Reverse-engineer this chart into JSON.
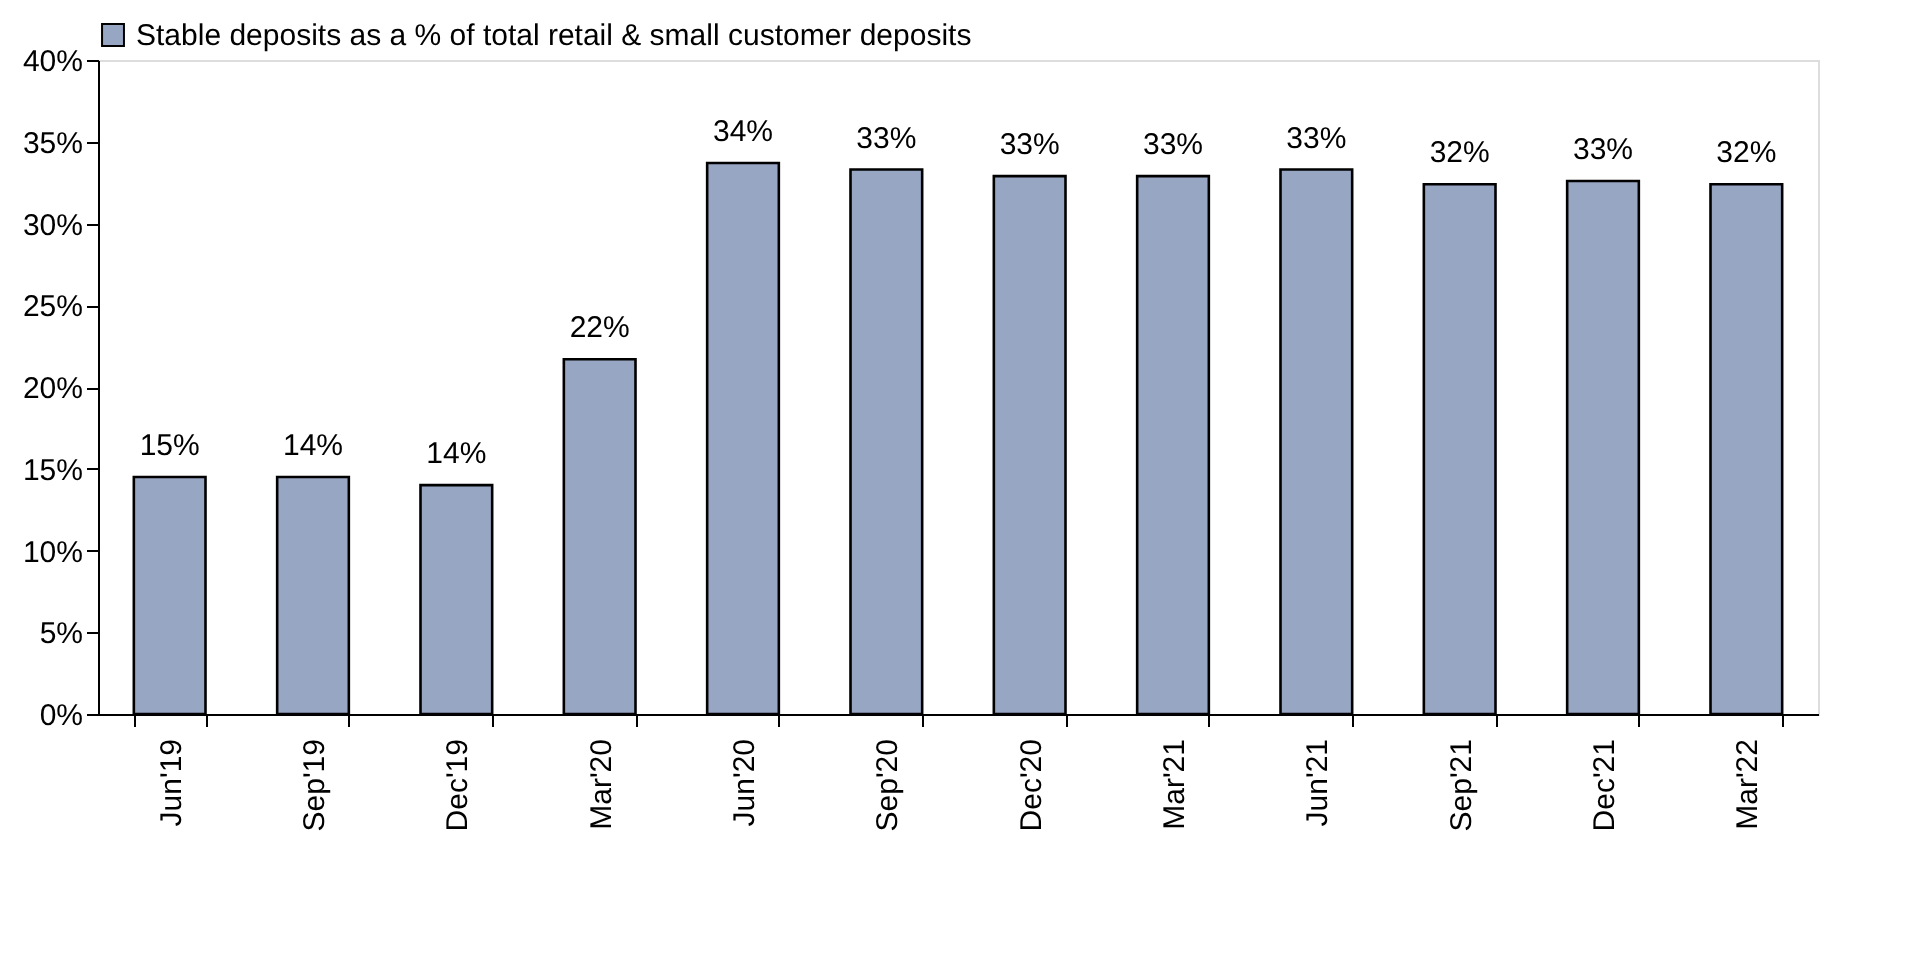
{
  "chart_data": {
    "type": "bar",
    "categories": [
      "Jun'19",
      "Sep'19",
      "Dec'19",
      "Mar'20",
      "Jun'20",
      "Sep'20",
      "Dec'20",
      "Mar'21",
      "Jun'21",
      "Sep'21",
      "Dec'21",
      "Mar'22"
    ],
    "series": [
      {
        "name": "Stable deposits as a  % of total retail & small customer deposits",
        "color": "#97a6c3",
        "values": [
          14.5,
          14.5,
          14.0,
          21.7,
          33.7,
          33.3,
          32.9,
          32.9,
          33.3,
          32.4,
          32.6,
          32.4
        ],
        "value_labels": [
          "15%",
          "14%",
          "14%",
          "22%",
          "34%",
          "33%",
          "33%",
          "33%",
          "33%",
          "32%",
          "33%",
          "32%"
        ]
      }
    ],
    "ylim": [
      0,
      40
    ],
    "yticks": [
      {
        "value": 0,
        "label": "0%"
      },
      {
        "value": 5,
        "label": "5%"
      },
      {
        "value": 10,
        "label": "10%"
      },
      {
        "value": 15,
        "label": "15%"
      },
      {
        "value": 20,
        "label": "20%"
      },
      {
        "value": 25,
        "label": "25%"
      },
      {
        "value": 30,
        "label": "30%"
      },
      {
        "value": 35,
        "label": "35%"
      },
      {
        "value": 40,
        "label": "40%"
      }
    ],
    "grid": false,
    "legend": "top"
  }
}
